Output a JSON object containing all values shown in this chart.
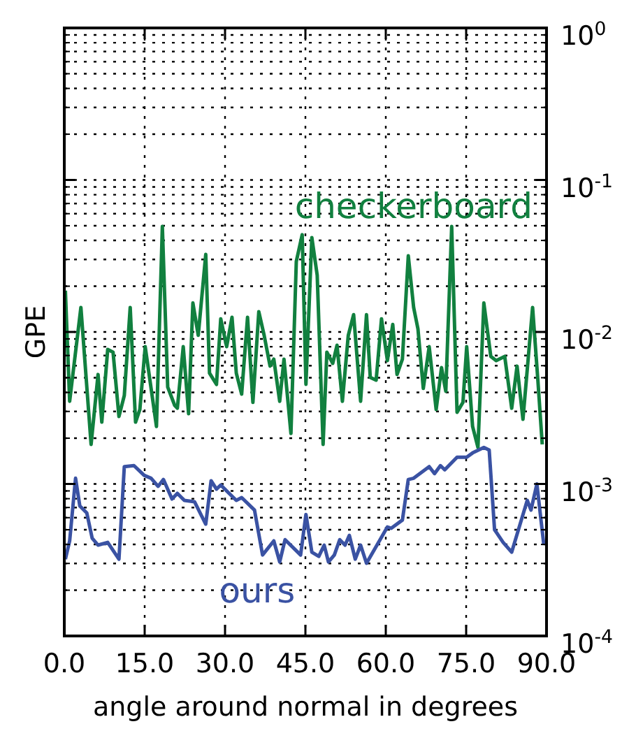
{
  "chart_data": {
    "type": "line",
    "xlabel": "angle around normal in degrees",
    "ylabel": "GPE",
    "log": "y",
    "grid": true,
    "marker": "none",
    "line_style": "solid",
    "xlim": [
      0,
      90
    ],
    "xticks": [
      {
        "value": 0,
        "label": "0.0"
      },
      {
        "value": 15,
        "label": "15.0"
      },
      {
        "value": 30,
        "label": "30.0"
      },
      {
        "value": 45,
        "label": "45.0"
      },
      {
        "value": 60,
        "label": "60.0"
      },
      {
        "value": 75,
        "label": "75.0"
      },
      {
        "value": 90,
        "label": "90.0"
      }
    ],
    "ylim": [
      0.0001,
      1
    ],
    "yticks": [
      {
        "value": 0.0001,
        "label": "10$^{-4}$"
      },
      {
        "value": 0.001,
        "label": "10$^{-3}$"
      },
      {
        "value": 0.01,
        "label": "10$^{-2}$"
      },
      {
        "value": 0.1,
        "label": "10$^{-1}$"
      },
      {
        "value": 1,
        "label": "10$^{0}$"
      }
    ],
    "series": [
      {
        "name": "checkerboard",
        "color": "#11803f",
        "x": [
          0.2,
          1.0,
          3.1,
          5.0,
          6.3,
          7.0,
          8.1,
          9.1,
          10.2,
          11.2,
          12.3,
          13.3,
          14.1,
          15.1,
          17.2,
          18.3,
          19.3,
          20.6,
          21.1,
          22.2,
          23.2,
          24.0,
          25.0,
          26.4,
          27.1,
          28.4,
          29.2,
          30.3,
          31.3,
          32.1,
          33.1,
          34.2,
          35.2,
          36.3,
          37.3,
          38.4,
          39.1,
          40.2,
          41.0,
          42.3,
          43.3,
          44.4,
          45.1,
          46.2,
          47.2,
          48.3,
          49.0,
          50.1,
          50.9,
          51.9,
          53.0,
          54.0,
          55.3,
          56.4,
          57.1,
          58.2,
          59.2,
          60.3,
          61.3,
          62.1,
          63.1,
          64.2,
          65.2,
          66.0,
          67.0,
          68.1,
          69.4,
          70.4,
          71.2,
          72.3,
          73.3,
          74.4,
          75.1,
          76.2,
          77.2,
          78.3,
          79.6,
          80.6,
          82.2,
          83.5,
          84.5,
          85.6,
          87.4,
          88.4,
          89.2
        ],
        "values": [
          0.0187,
          0.0035,
          0.0145,
          0.00182,
          0.00525,
          0.00255,
          0.00767,
          0.00736,
          0.00278,
          0.00382,
          0.0145,
          0.00255,
          0.00309,
          0.008,
          0.00239,
          0.0494,
          0.00434,
          0.00329,
          0.00315,
          0.008,
          0.0029,
          0.0155,
          0.0095,
          0.0324,
          0.00536,
          0.00452,
          0.0122,
          0.008,
          0.0125,
          0.00536,
          0.0039,
          0.0125,
          0.00344,
          0.0136,
          0.0095,
          0.00596,
          0.00662,
          0.0035,
          0.00662,
          0.00215,
          0.0291,
          0.0436,
          0.00452,
          0.0418,
          0.0236,
          0.00182,
          0.00736,
          0.00621,
          0.00818,
          0.0035,
          0.0095,
          0.013,
          0.0035,
          0.013,
          0.00503,
          0.00482,
          0.0122,
          0.00648,
          0.0112,
          0.00525,
          0.00662,
          0.0317,
          0.0145,
          0.0105,
          0.00425,
          0.008,
          0.00309,
          0.00583,
          0.00407,
          0.0494,
          0.00296,
          0.00344,
          0.008,
          0.00239,
          0.00174,
          0.0155,
          0.0069,
          0.00648,
          0.0069,
          0.00315,
          0.00596,
          0.00266,
          0.0145,
          0.00472,
          0.00182
        ]
      },
      {
        "name": "ours",
        "color": "#3a52a3",
        "x": [
          0.2,
          1.0,
          2.1,
          2.9,
          4.2,
          5.2,
          6.3,
          8.1,
          10.2,
          11.2,
          13.0,
          14.9,
          16.2,
          17.5,
          18.5,
          20.1,
          21.1,
          22.4,
          24.3,
          26.4,
          27.4,
          28.4,
          29.2,
          30.5,
          32.1,
          33.1,
          35.5,
          37.0,
          39.1,
          40.2,
          41.2,
          44.1,
          45.1,
          46.2,
          47.5,
          48.5,
          49.3,
          50.4,
          51.4,
          52.4,
          53.2,
          54.3,
          55.3,
          56.4,
          60.3,
          61.0,
          63.1,
          64.2,
          65.2,
          68.1,
          69.1,
          70.2,
          71.0,
          73.3,
          75.1,
          76.2,
          78.3,
          79.3,
          80.3,
          81.9,
          83.5,
          86.4,
          87.1,
          88.2,
          89.5
        ],
        "values": [
          0.00032,
          0.000422,
          0.00109,
          0.000716,
          0.000644,
          0.00044,
          0.000396,
          0.000413,
          0.00032,
          0.0013,
          0.00132,
          0.00114,
          0.00109,
          0.000964,
          0.00107,
          0.000796,
          0.000867,
          0.00078,
          0.000764,
          0.000544,
          0.00105,
          0.000925,
          0.000984,
          0.000885,
          0.00078,
          0.000813,
          0.000673,
          0.000341,
          0.000422,
          0.000307,
          0.00043,
          0.000341,
          0.00063,
          0.000356,
          0.000334,
          0.000396,
          0.000307,
          0.000341,
          0.00043,
          0.000396,
          0.000459,
          0.00032,
          0.000396,
          0.000301,
          0.000521,
          0.000511,
          0.000579,
          0.00107,
          0.00109,
          0.0013,
          0.00117,
          0.00132,
          0.00124,
          0.0015,
          0.0015,
          0.0016,
          0.00174,
          0.00167,
          0.0005,
          0.000413,
          0.000356,
          0.00078,
          0.000673,
          0.001,
          0.000396
        ]
      }
    ]
  }
}
